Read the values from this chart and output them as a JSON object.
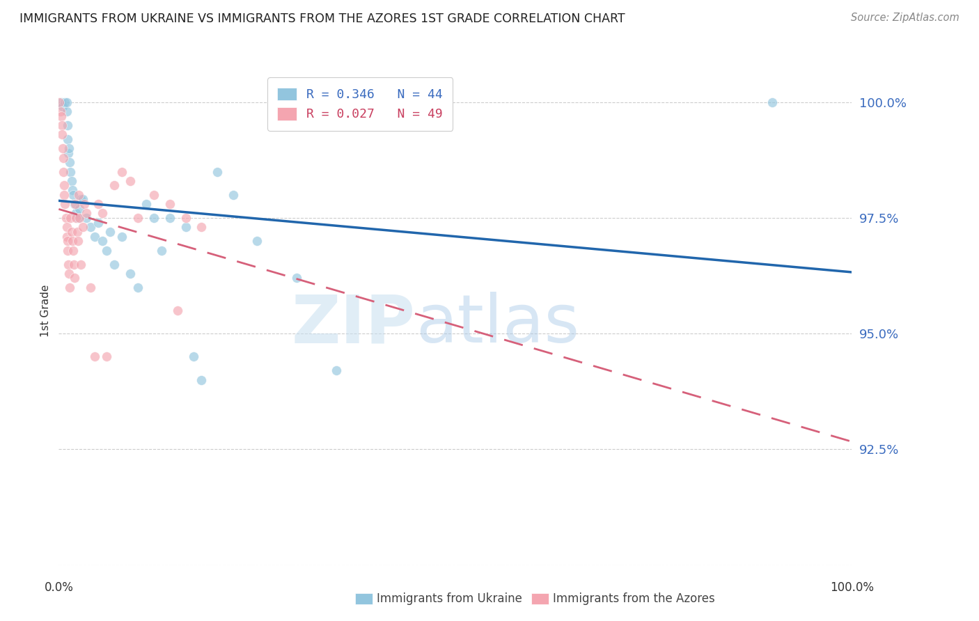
{
  "title": "IMMIGRANTS FROM UKRAINE VS IMMIGRANTS FROM THE AZORES 1ST GRADE CORRELATION CHART",
  "source": "Source: ZipAtlas.com",
  "ylabel": "1st Grade",
  "yticks": [
    90.0,
    92.5,
    95.0,
    97.5,
    100.0
  ],
  "ytick_labels": [
    "",
    "92.5%",
    "95.0%",
    "97.5%",
    "100.0%"
  ],
  "xmin": 0.0,
  "xmax": 100.0,
  "ymin": 90.0,
  "ymax": 101.0,
  "ukraine_R": 0.346,
  "ukraine_N": 44,
  "azores_R": 0.027,
  "azores_N": 49,
  "ukraine_color": "#92c5de",
  "azores_color": "#f4a5b0",
  "ukraine_line_color": "#2166ac",
  "azores_line_color": "#d6607a",
  "background_color": "#ffffff",
  "legend_label_ukraine": "Immigrants from Ukraine",
  "legend_label_azores": "Immigrants from the Azores",
  "ukraine_x": [
    0.3,
    0.5,
    0.8,
    1.0,
    1.05,
    1.1,
    1.15,
    1.2,
    1.3,
    1.4,
    1.5,
    1.6,
    1.7,
    1.8,
    2.0,
    2.2,
    2.4,
    2.6,
    2.8,
    3.0,
    3.5,
    4.0,
    4.5,
    5.0,
    5.5,
    6.0,
    6.5,
    7.0,
    8.0,
    9.0,
    10.0,
    11.0,
    12.0,
    13.0,
    14.0,
    16.0,
    17.0,
    18.0,
    20.0,
    22.0,
    25.0,
    30.0,
    35.0,
    90.0
  ],
  "ukraine_y": [
    100.0,
    99.9,
    100.0,
    99.8,
    100.0,
    99.5,
    99.2,
    98.9,
    99.0,
    98.7,
    98.5,
    98.3,
    98.1,
    98.0,
    97.8,
    97.6,
    97.5,
    97.7,
    97.9,
    97.9,
    97.5,
    97.3,
    97.1,
    97.4,
    97.0,
    96.8,
    97.2,
    96.5,
    97.1,
    96.3,
    96.0,
    97.8,
    97.5,
    96.8,
    97.5,
    97.3,
    94.5,
    94.0,
    98.5,
    98.0,
    97.0,
    96.2,
    94.2,
    100.0
  ],
  "azores_x": [
    0.1,
    0.2,
    0.3,
    0.4,
    0.45,
    0.5,
    0.55,
    0.6,
    0.65,
    0.7,
    0.8,
    0.9,
    1.0,
    1.05,
    1.1,
    1.15,
    1.2,
    1.3,
    1.4,
    1.5,
    1.6,
    1.7,
    1.8,
    1.9,
    2.0,
    2.1,
    2.2,
    2.3,
    2.4,
    2.5,
    2.6,
    2.8,
    3.0,
    3.2,
    3.5,
    4.0,
    4.5,
    5.0,
    5.5,
    6.0,
    7.0,
    8.0,
    9.0,
    10.0,
    12.0,
    14.0,
    16.0,
    18.0,
    15.0
  ],
  "azores_y": [
    100.0,
    99.8,
    99.7,
    99.5,
    99.3,
    99.0,
    98.8,
    98.5,
    98.2,
    98.0,
    97.8,
    97.5,
    97.3,
    97.1,
    97.0,
    96.8,
    96.5,
    96.3,
    96.0,
    97.5,
    97.2,
    97.0,
    96.8,
    96.5,
    96.2,
    97.8,
    97.5,
    97.2,
    97.0,
    98.0,
    97.5,
    96.5,
    97.3,
    97.8,
    97.6,
    96.0,
    94.5,
    97.8,
    97.6,
    94.5,
    98.2,
    98.5,
    98.3,
    97.5,
    98.0,
    97.8,
    97.5,
    97.3,
    95.5
  ]
}
